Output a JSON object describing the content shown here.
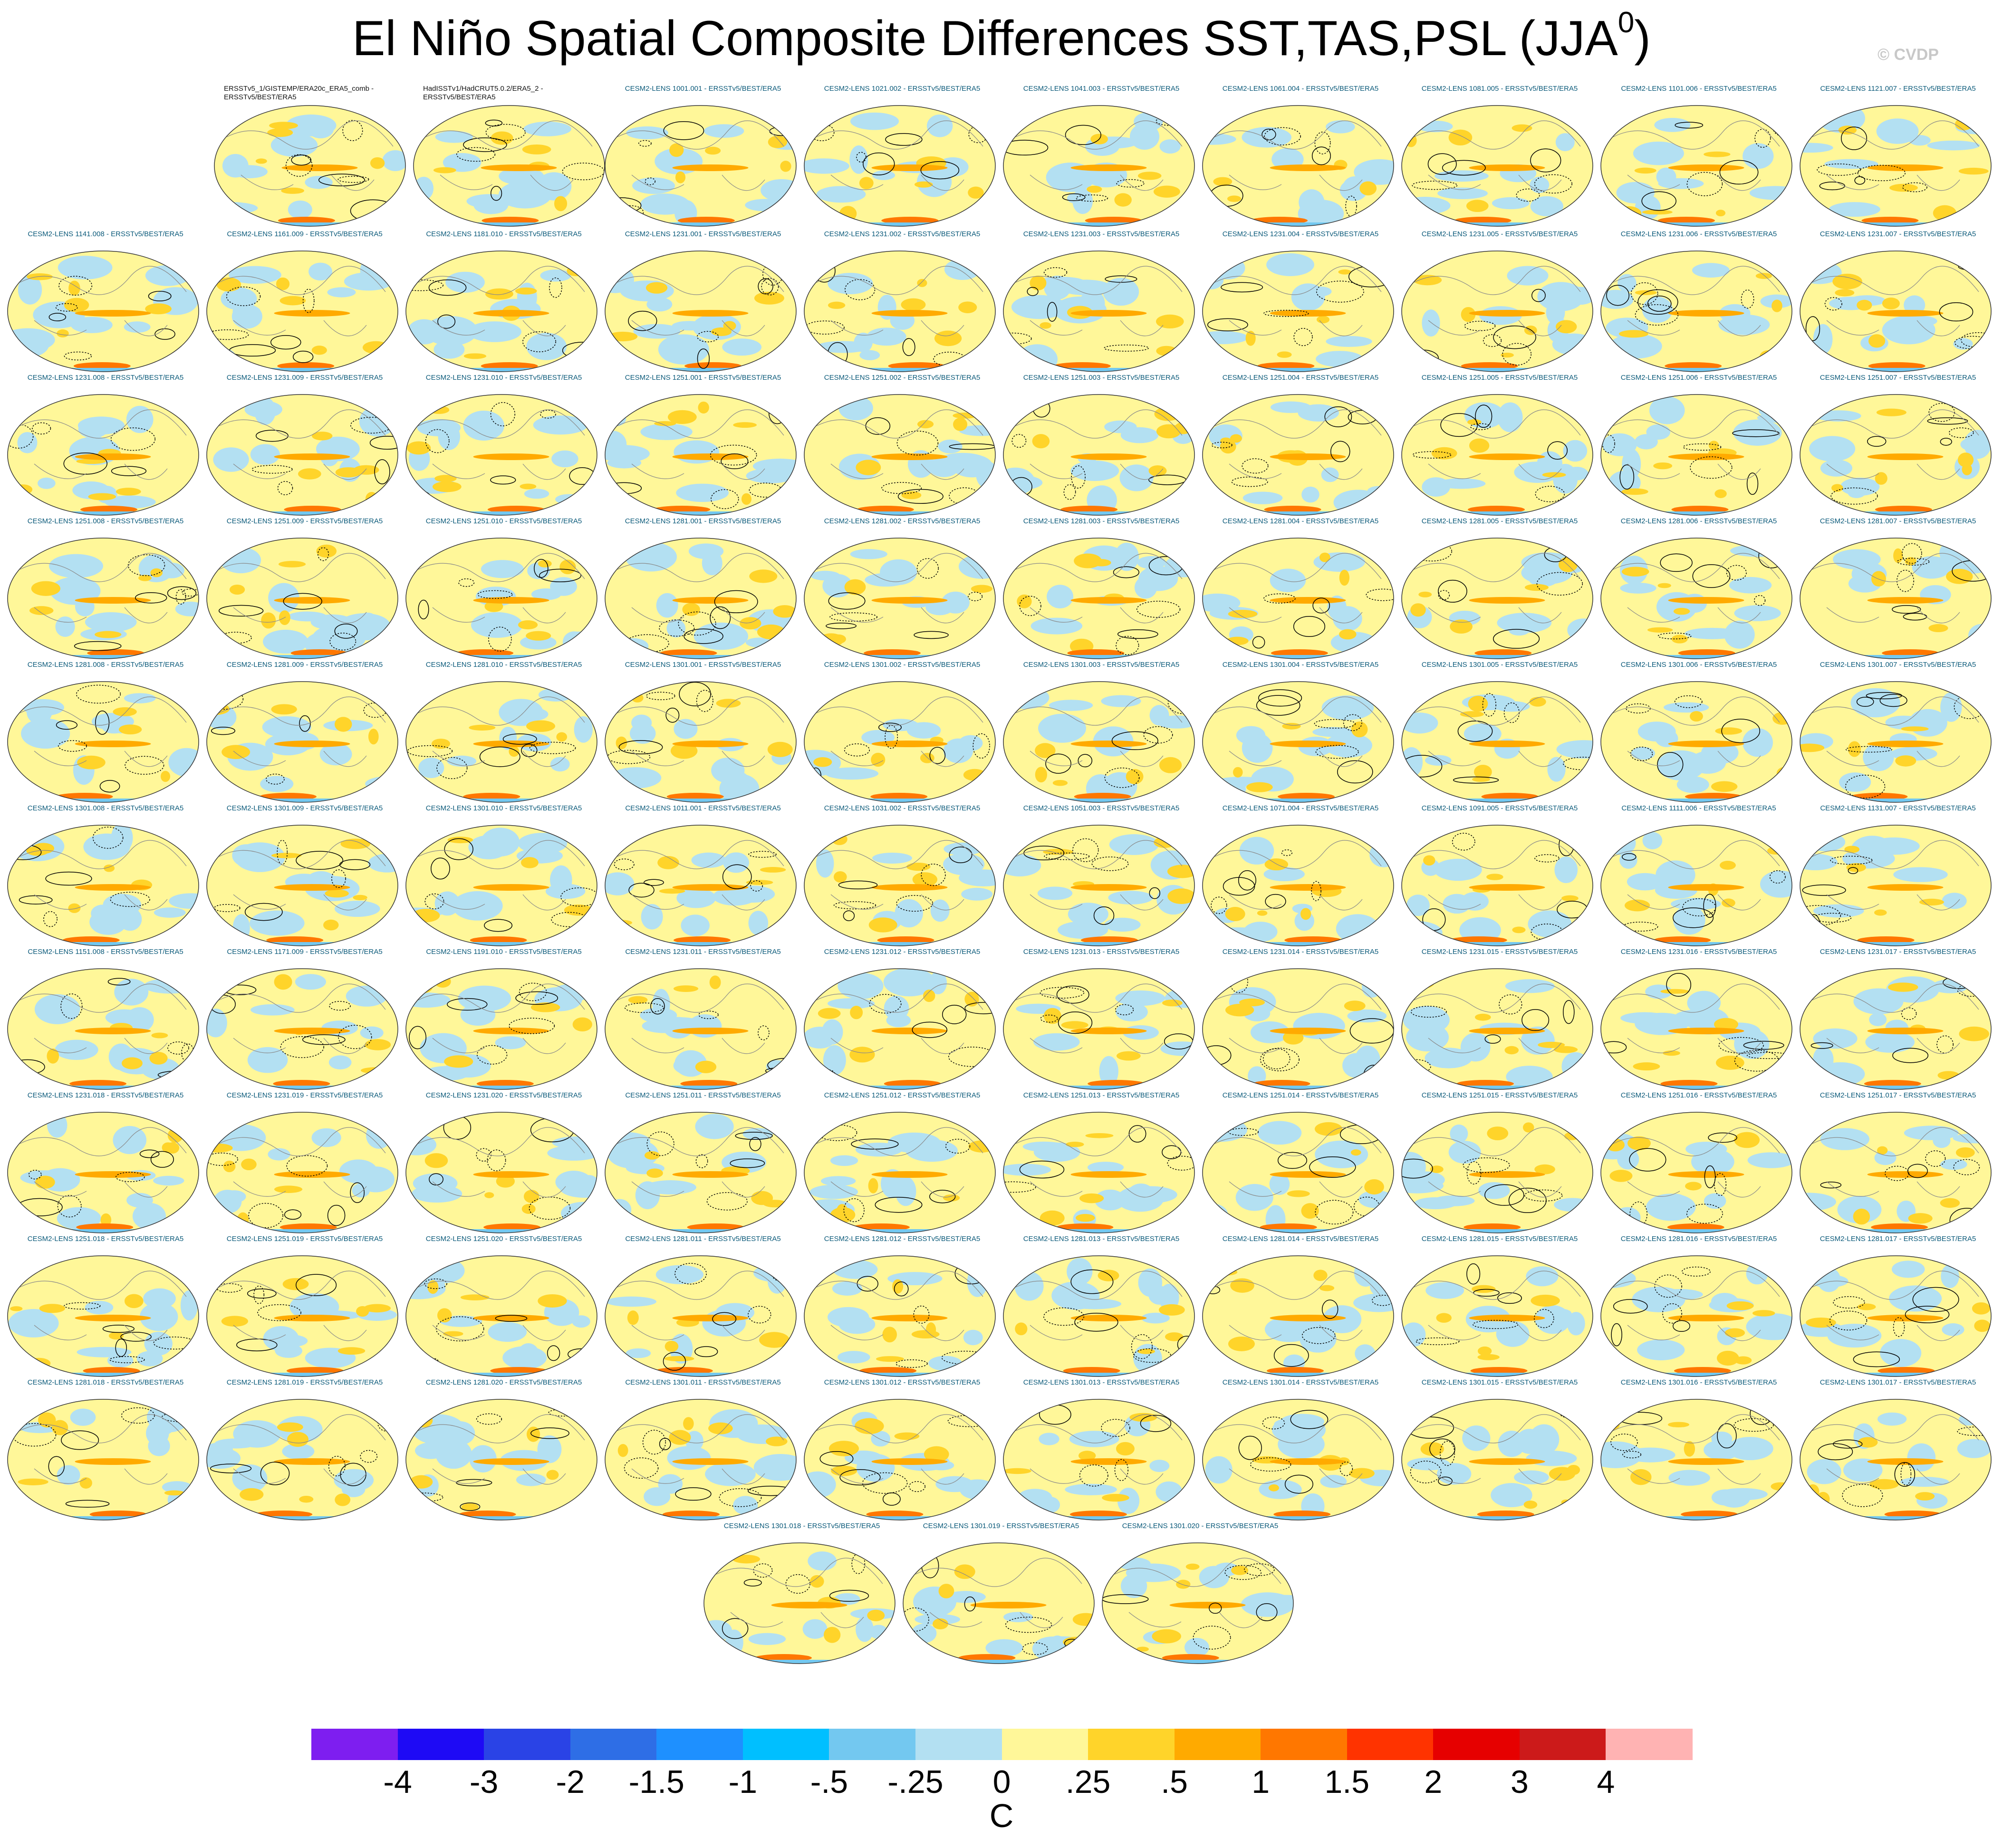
{
  "title": "El Niño Spatial Composite Differences SST,TAS,PSL (JJA",
  "title_superscript": "0",
  "title_close": ")",
  "copyright": "© CVDP",
  "chart_data": {
    "type": "heatmap",
    "title": "El Niño Spatial Composite Differences SST,TAS,PSL (JJA0)",
    "units": "C",
    "colorbar": {
      "ticks": [
        "-4",
        "-3",
        "-2",
        "-1.5",
        "-1",
        "-.5",
        "-.25",
        "0",
        ".25",
        ".5",
        "1",
        "1.5",
        "2",
        "3",
        "4"
      ],
      "colors": [
        "#7e1ef0",
        "#1e0af5",
        "#2a43e6",
        "#2e6ee6",
        "#1e90ff",
        "#00bfff",
        "#73c8f0",
        "#b3e0f2",
        "#fff799",
        "#ffd42a",
        "#ffaa00",
        "#ff7700",
        "#ff3300",
        "#e60000",
        "#cc1a1a",
        "#ffb3b3"
      ]
    },
    "panel_rows": [
      [
        "ERSSTv5_1/GISTEMP/ERA20c_ERA5_comb - ERSSTv5/BEST/ERA5",
        "HadISSTv1/HadCRUT5.0.2/ERA5_2 - ERSSTv5/BEST/ERA5",
        "CESM2-LENS 1001.001 - ERSSTv5/BEST/ERA5",
        "CESM2-LENS 1021.002 - ERSSTv5/BEST/ERA5",
        "CESM2-LENS 1041.003 - ERSSTv5/BEST/ERA5",
        "CESM2-LENS 1061.004 - ERSSTv5/BEST/ERA5",
        "CESM2-LENS 1081.005 - ERSSTv5/BEST/ERA5",
        "CESM2-LENS 1101.006 - ERSSTv5/BEST/ERA5",
        "CESM2-LENS 1121.007 - ERSSTv5/BEST/ERA5"
      ],
      [
        "CESM2-LENS 1141.008 - ERSSTv5/BEST/ERA5",
        "CESM2-LENS 1161.009 - ERSSTv5/BEST/ERA5",
        "CESM2-LENS 1181.010 - ERSSTv5/BEST/ERA5",
        "CESM2-LENS 1231.001 - ERSSTv5/BEST/ERA5",
        "CESM2-LENS 1231.002 - ERSSTv5/BEST/ERA5",
        "CESM2-LENS 1231.003 - ERSSTv5/BEST/ERA5",
        "CESM2-LENS 1231.004 - ERSSTv5/BEST/ERA5",
        "CESM2-LENS 1231.005 - ERSSTv5/BEST/ERA5",
        "CESM2-LENS 1231.006 - ERSSTv5/BEST/ERA5",
        "CESM2-LENS 1231.007 - ERSSTv5/BEST/ERA5"
      ],
      [
        "CESM2-LENS 1231.008 - ERSSTv5/BEST/ERA5",
        "CESM2-LENS 1231.009 - ERSSTv5/BEST/ERA5",
        "CESM2-LENS 1231.010 - ERSSTv5/BEST/ERA5",
        "CESM2-LENS 1251.001 - ERSSTv5/BEST/ERA5",
        "CESM2-LENS 1251.002 - ERSSTv5/BEST/ERA5",
        "CESM2-LENS 1251.003 - ERSSTv5/BEST/ERA5",
        "CESM2-LENS 1251.004 - ERSSTv5/BEST/ERA5",
        "CESM2-LENS 1251.005 - ERSSTv5/BEST/ERA5",
        "CESM2-LENS 1251.006 - ERSSTv5/BEST/ERA5",
        "CESM2-LENS 1251.007 - ERSSTv5/BEST/ERA5"
      ],
      [
        "CESM2-LENS 1251.008 - ERSSTv5/BEST/ERA5",
        "CESM2-LENS 1251.009 - ERSSTv5/BEST/ERA5",
        "CESM2-LENS 1251.010 - ERSSTv5/BEST/ERA5",
        "CESM2-LENS 1281.001 - ERSSTv5/BEST/ERA5",
        "CESM2-LENS 1281.002 - ERSSTv5/BEST/ERA5",
        "CESM2-LENS 1281.003 - ERSSTv5/BEST/ERA5",
        "CESM2-LENS 1281.004 - ERSSTv5/BEST/ERA5",
        "CESM2-LENS 1281.005 - ERSSTv5/BEST/ERA5",
        "CESM2-LENS 1281.006 - ERSSTv5/BEST/ERA5",
        "CESM2-LENS 1281.007 - ERSSTv5/BEST/ERA5"
      ],
      [
        "CESM2-LENS 1281.008 - ERSSTv5/BEST/ERA5",
        "CESM2-LENS 1281.009 - ERSSTv5/BEST/ERA5",
        "CESM2-LENS 1281.010 - ERSSTv5/BEST/ERA5",
        "CESM2-LENS 1301.001 - ERSSTv5/BEST/ERA5",
        "CESM2-LENS 1301.002 - ERSSTv5/BEST/ERA5",
        "CESM2-LENS 1301.003 - ERSSTv5/BEST/ERA5",
        "CESM2-LENS 1301.004 - ERSSTv5/BEST/ERA5",
        "CESM2-LENS 1301.005 - ERSSTv5/BEST/ERA5",
        "CESM2-LENS 1301.006 - ERSSTv5/BEST/ERA5",
        "CESM2-LENS 1301.007 - ERSSTv5/BEST/ERA5"
      ],
      [
        "CESM2-LENS 1301.008 - ERSSTv5/BEST/ERA5",
        "CESM2-LENS 1301.009 - ERSSTv5/BEST/ERA5",
        "CESM2-LENS 1301.010 - ERSSTv5/BEST/ERA5",
        "CESM2-LENS 1011.001 - ERSSTv5/BEST/ERA5",
        "CESM2-LENS 1031.002 - ERSSTv5/BEST/ERA5",
        "CESM2-LENS 1051.003 - ERSSTv5/BEST/ERA5",
        "CESM2-LENS 1071.004 - ERSSTv5/BEST/ERA5",
        "CESM2-LENS 1091.005 - ERSSTv5/BEST/ERA5",
        "CESM2-LENS 1111.006 - ERSSTv5/BEST/ERA5",
        "CESM2-LENS 1131.007 - ERSSTv5/BEST/ERA5"
      ],
      [
        "CESM2-LENS 1151.008 - ERSSTv5/BEST/ERA5",
        "CESM2-LENS 1171.009 - ERSSTv5/BEST/ERA5",
        "CESM2-LENS 1191.010 - ERSSTv5/BEST/ERA5",
        "CESM2-LENS 1231.011 - ERSSTv5/BEST/ERA5",
        "CESM2-LENS 1231.012 - ERSSTv5/BEST/ERA5",
        "CESM2-LENS 1231.013 - ERSSTv5/BEST/ERA5",
        "CESM2-LENS 1231.014 - ERSSTv5/BEST/ERA5",
        "CESM2-LENS 1231.015 - ERSSTv5/BEST/ERA5",
        "CESM2-LENS 1231.016 - ERSSTv5/BEST/ERA5",
        "CESM2-LENS 1231.017 - ERSSTv5/BEST/ERA5"
      ],
      [
        "CESM2-LENS 1231.018 - ERSSTv5/BEST/ERA5",
        "CESM2-LENS 1231.019 - ERSSTv5/BEST/ERA5",
        "CESM2-LENS 1231.020 - ERSSTv5/BEST/ERA5",
        "CESM2-LENS 1251.011 - ERSSTv5/BEST/ERA5",
        "CESM2-LENS 1251.012 - ERSSTv5/BEST/ERA5",
        "CESM2-LENS 1251.013 - ERSSTv5/BEST/ERA5",
        "CESM2-LENS 1251.014 - ERSSTv5/BEST/ERA5",
        "CESM2-LENS 1251.015 - ERSSTv5/BEST/ERA5",
        "CESM2-LENS 1251.016 - ERSSTv5/BEST/ERA5",
        "CESM2-LENS 1251.017 - ERSSTv5/BEST/ERA5"
      ],
      [
        "CESM2-LENS 1251.018 - ERSSTv5/BEST/ERA5",
        "CESM2-LENS 1251.019 - ERSSTv5/BEST/ERA5",
        "CESM2-LENS 1251.020 - ERSSTv5/BEST/ERA5",
        "CESM2-LENS 1281.011 - ERSSTv5/BEST/ERA5",
        "CESM2-LENS 1281.012 - ERSSTv5/BEST/ERA5",
        "CESM2-LENS 1281.013 - ERSSTv5/BEST/ERA5",
        "CESM2-LENS 1281.014 - ERSSTv5/BEST/ERA5",
        "CESM2-LENS 1281.015 - ERSSTv5/BEST/ERA5",
        "CESM2-LENS 1281.016 - ERSSTv5/BEST/ERA5",
        "CESM2-LENS 1281.017 - ERSSTv5/BEST/ERA5"
      ],
      [
        "CESM2-LENS 1281.018 - ERSSTv5/BEST/ERA5",
        "CESM2-LENS 1281.019 - ERSSTv5/BEST/ERA5",
        "CESM2-LENS 1281.020 - ERSSTv5/BEST/ERA5",
        "CESM2-LENS 1301.011 - ERSSTv5/BEST/ERA5",
        "CESM2-LENS 1301.012 - ERSSTv5/BEST/ERA5",
        "CESM2-LENS 1301.013 - ERSSTv5/BEST/ERA5",
        "CESM2-LENS 1301.014 - ERSSTv5/BEST/ERA5",
        "CESM2-LENS 1301.015 - ERSSTv5/BEST/ERA5",
        "CESM2-LENS 1301.016 - ERSSTv5/BEST/ERA5",
        "CESM2-LENS 1301.017 - ERSSTv5/BEST/ERA5"
      ],
      [
        "CESM2-LENS 1301.018 - ERSSTv5/BEST/ERA5",
        "CESM2-LENS 1301.019 - ERSSTv5/BEST/ERA5",
        "CESM2-LENS 1301.020 - ERSSTv5/BEST/ERA5"
      ]
    ]
  }
}
